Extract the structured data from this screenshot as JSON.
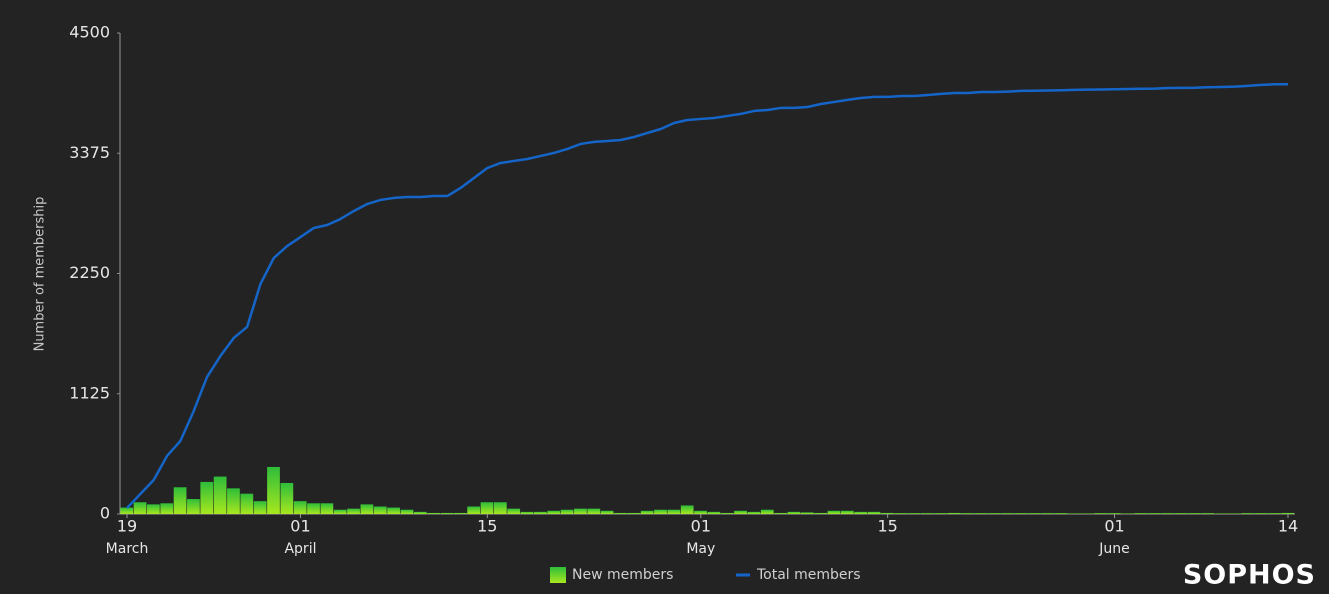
{
  "chart_data": {
    "type": "combo",
    "y_label": "Number of membership",
    "brand": "SOPHOS",
    "x": [
      0,
      1,
      2,
      3,
      4,
      5,
      6,
      7,
      8,
      9,
      10,
      11,
      12,
      13,
      14,
      15,
      16,
      17,
      18,
      19,
      20,
      21,
      22,
      23,
      24,
      25,
      26,
      27,
      28,
      29,
      30,
      31,
      32,
      33,
      34,
      35,
      36,
      37,
      38,
      39,
      40,
      41,
      42,
      43,
      44,
      45,
      46,
      47,
      48,
      49,
      50,
      51,
      52,
      53,
      54,
      55,
      56,
      57,
      58,
      59,
      60,
      61,
      62,
      63,
      64,
      65,
      66,
      67,
      68,
      69,
      70,
      71,
      72,
      73,
      74,
      75,
      76,
      77,
      78,
      79,
      80,
      81,
      82,
      83,
      84,
      85,
      86,
      87
    ],
    "xlim": [
      0,
      87
    ],
    "xticks": [
      {
        "value": 0,
        "label": "19",
        "sublabel": "March"
      },
      {
        "value": 13,
        "label": "01",
        "sublabel": "April"
      },
      {
        "value": 27,
        "label": "15"
      },
      {
        "value": 43,
        "label": "01",
        "sublabel": "May"
      },
      {
        "value": 57,
        "label": "15"
      },
      {
        "value": 74,
        "label": "01",
        "sublabel": "June"
      },
      {
        "value": 87,
        "label": "14"
      }
    ],
    "ylim": [
      0,
      4500
    ],
    "yticks": [
      0,
      1125,
      2250,
      3375,
      4500
    ],
    "series": [
      {
        "name": "New members",
        "type": "bar",
        "color": "#2ebd3a",
        "color2": "#a8e81e",
        "values": [
          60,
          110,
          90,
          100,
          250,
          140,
          300,
          350,
          240,
          190,
          120,
          440,
          290,
          120,
          100,
          100,
          40,
          50,
          90,
          70,
          60,
          40,
          20,
          10,
          10,
          10,
          70,
          110,
          110,
          50,
          20,
          20,
          30,
          40,
          50,
          50,
          30,
          10,
          10,
          30,
          40,
          40,
          80,
          30,
          20,
          10,
          30,
          20,
          40,
          10,
          20,
          15,
          10,
          30,
          30,
          20,
          20,
          10,
          8,
          8,
          8,
          8,
          10,
          8,
          8,
          8,
          8,
          8,
          8,
          8,
          8,
          5,
          5,
          8,
          8,
          5,
          8,
          8,
          8,
          8,
          8,
          8,
          5,
          5,
          8,
          8,
          8,
          10
        ]
      },
      {
        "name": "Total members",
        "type": "line",
        "color": "#1565c8",
        "values": [
          56,
          187,
          318,
          543,
          683,
          964,
          1282,
          1478,
          1647,
          1750,
          2152,
          2395,
          2507,
          2591,
          2676,
          2704,
          2760,
          2835,
          2900,
          2938,
          2957,
          2966,
          2966,
          2975,
          2975,
          3050,
          3144,
          3237,
          3284,
          3303,
          3321,
          3350,
          3378,
          3415,
          3462,
          3481,
          3490,
          3499,
          3527,
          3565,
          3602,
          3658,
          3686,
          3696,
          3705,
          3724,
          3743,
          3771,
          3780,
          3799,
          3799,
          3808,
          3836,
          3855,
          3874,
          3892,
          3902,
          3902,
          3911,
          3911,
          3920,
          3930,
          3939,
          3939,
          3948,
          3948,
          3952,
          3958,
          3960,
          3962,
          3965,
          3968,
          3970,
          3972,
          3974,
          3976,
          3978,
          3980,
          3985,
          3987,
          3988,
          3992,
          3995,
          3998,
          4005,
          4015,
          4020,
          4020
        ]
      }
    ]
  }
}
